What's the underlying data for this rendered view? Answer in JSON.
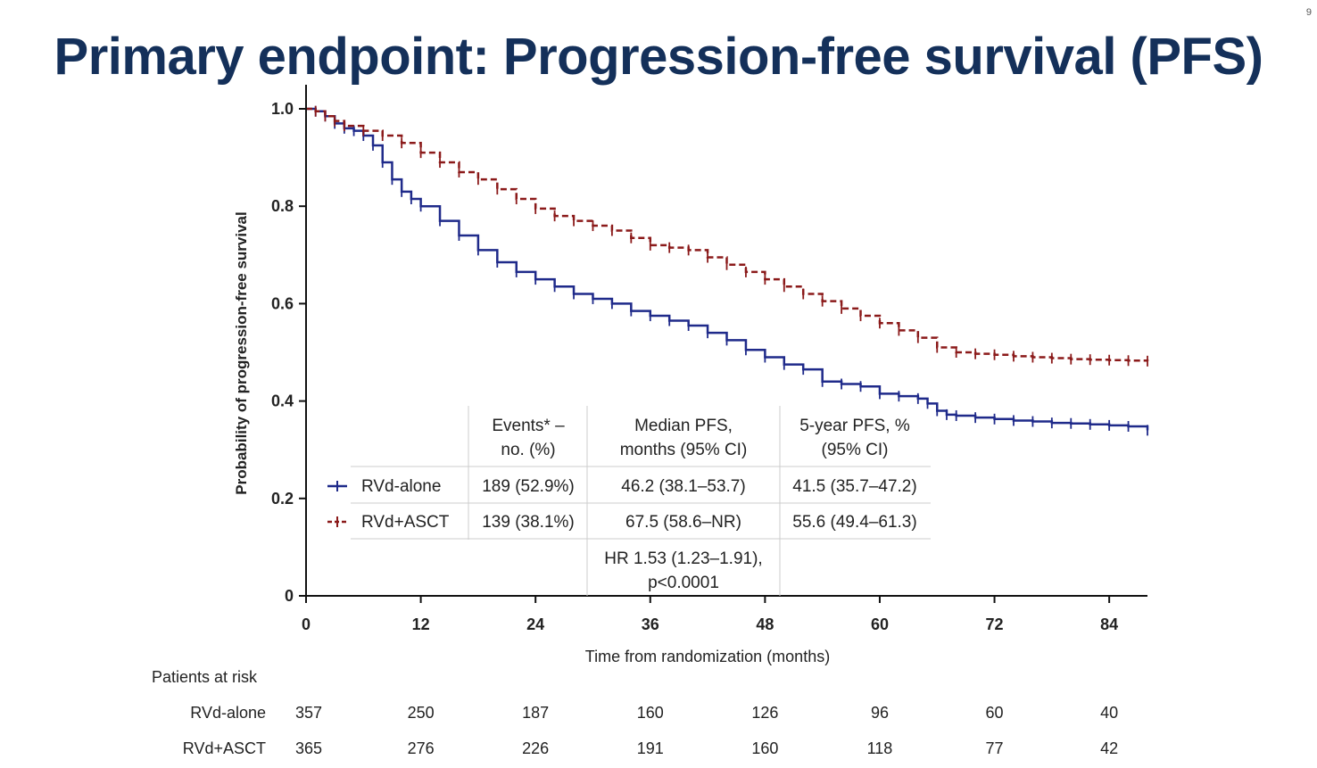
{
  "slide_number": "9",
  "title": "Primary endpoint: Progression-free survival (PFS)",
  "colors": {
    "title": "#14305a",
    "rvd_alone": "#1f2a8a",
    "rvd_asct": "#8b1a1a"
  },
  "chart_data": {
    "type": "line",
    "title": "",
    "xlabel": "Time from randomization (months)",
    "ylabel": "Probability of progression-free survival",
    "xlim": [
      0,
      88
    ],
    "ylim": [
      0,
      1.0
    ],
    "xticks": [
      0,
      12,
      24,
      36,
      48,
      60,
      72,
      84
    ],
    "xtick_labels": [
      "0",
      "12",
      "24",
      "36",
      "48",
      "60",
      "72",
      "84"
    ],
    "yticks": [
      0,
      0.2,
      0.4,
      0.6,
      0.8,
      1.0
    ],
    "ytick_labels": [
      "0",
      "0.2",
      "0.4",
      "0.6",
      "0.8",
      "1.0"
    ],
    "series": [
      {
        "name": "RVd-alone",
        "color": "#1f2a8a",
        "style": "solid",
        "x": [
          0,
          1,
          2,
          3,
          4,
          5,
          6,
          7,
          8,
          9,
          10,
          11,
          12,
          14,
          16,
          18,
          20,
          22,
          24,
          26,
          28,
          30,
          32,
          34,
          36,
          38,
          40,
          42,
          44,
          46,
          48,
          50,
          52,
          54,
          56,
          58,
          60,
          62,
          64,
          65,
          66,
          67,
          68,
          70,
          72,
          74,
          76,
          78,
          80,
          82,
          84,
          86,
          88
        ],
        "y": [
          1.0,
          0.995,
          0.985,
          0.97,
          0.96,
          0.955,
          0.945,
          0.925,
          0.89,
          0.855,
          0.83,
          0.815,
          0.8,
          0.77,
          0.74,
          0.71,
          0.685,
          0.665,
          0.65,
          0.635,
          0.62,
          0.61,
          0.6,
          0.585,
          0.575,
          0.565,
          0.555,
          0.54,
          0.525,
          0.505,
          0.49,
          0.475,
          0.465,
          0.44,
          0.435,
          0.43,
          0.415,
          0.41,
          0.405,
          0.395,
          0.38,
          0.372,
          0.37,
          0.366,
          0.363,
          0.36,
          0.358,
          0.355,
          0.354,
          0.352,
          0.35,
          0.348,
          0.34
        ]
      },
      {
        "name": "RVd+ASCT",
        "color": "#8b1a1a",
        "style": "dashed",
        "x": [
          0,
          1,
          2,
          3,
          4,
          6,
          8,
          10,
          12,
          14,
          16,
          18,
          20,
          22,
          24,
          26,
          28,
          30,
          32,
          34,
          36,
          38,
          40,
          42,
          44,
          46,
          48,
          50,
          52,
          54,
          56,
          58,
          60,
          62,
          64,
          66,
          68,
          70,
          72,
          74,
          76,
          78,
          80,
          82,
          84,
          86,
          88
        ],
        "y": [
          1.0,
          0.995,
          0.985,
          0.975,
          0.965,
          0.955,
          0.945,
          0.93,
          0.91,
          0.89,
          0.87,
          0.855,
          0.835,
          0.815,
          0.795,
          0.78,
          0.77,
          0.76,
          0.75,
          0.735,
          0.72,
          0.715,
          0.71,
          0.695,
          0.68,
          0.665,
          0.65,
          0.635,
          0.62,
          0.605,
          0.59,
          0.575,
          0.56,
          0.545,
          0.53,
          0.51,
          0.5,
          0.497,
          0.495,
          0.492,
          0.49,
          0.488,
          0.486,
          0.485,
          0.484,
          0.483,
          0.482
        ]
      }
    ]
  },
  "summary_table": {
    "headers": [
      [
        "Events* –",
        "no. (%)"
      ],
      [
        "Median PFS,",
        "months (95% CI)"
      ],
      [
        "5-year PFS, %",
        "(95% CI)"
      ]
    ],
    "rows": [
      {
        "label": "RVd-alone",
        "events": "189 (52.9%)",
        "median": "46.2 (38.1–53.7)",
        "five_year": "41.5 (35.7–47.2)"
      },
      {
        "label": "RVd+ASCT",
        "events": "139 (38.1%)",
        "median": "67.5 (58.6–NR)",
        "five_year": "55.6 (49.4–61.3)"
      }
    ],
    "hr_line1": "HR 1.53 (1.23–1.91),",
    "hr_line2": "p<0.0001"
  },
  "patients_at_risk": {
    "title": "Patients at risk",
    "rows": [
      {
        "label": "RVd-alone",
        "values": [
          "357",
          "250",
          "187",
          "160",
          "126",
          "96",
          "60",
          "40"
        ]
      },
      {
        "label": "RVd+ASCT",
        "values": [
          "365",
          "276",
          "226",
          "191",
          "160",
          "118",
          "77",
          "42"
        ]
      }
    ]
  }
}
